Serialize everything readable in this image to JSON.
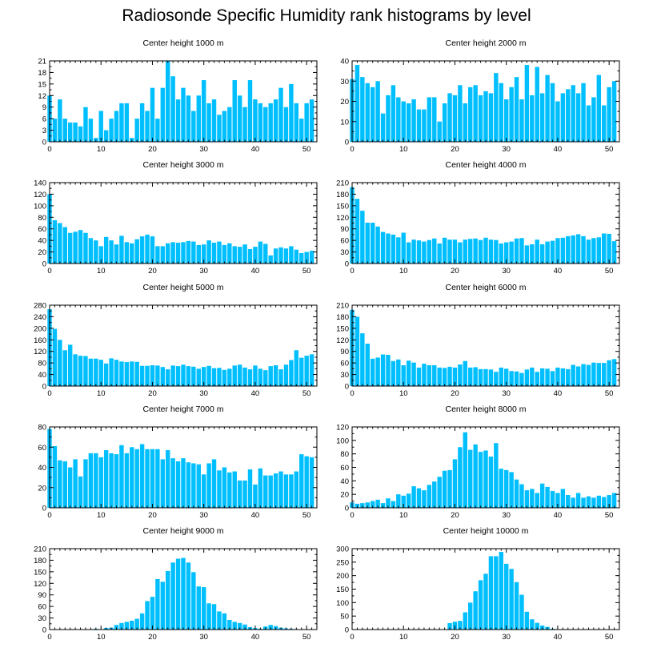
{
  "title": "Radiosonde Specific Humidity rank histograms by level",
  "colors": {
    "bar": "#00bfff",
    "bar_stroke": "#ffffff",
    "axis": "#000000"
  },
  "chart_data": [
    {
      "type": "bar",
      "title": "Center height 1000 m",
      "x_start": 0,
      "xlim": [
        0,
        52
      ],
      "xticks": [
        0,
        10,
        20,
        30,
        40,
        50
      ],
      "ylim": [
        0,
        21
      ],
      "yticks": [
        0,
        3,
        6,
        9,
        12,
        15,
        18,
        21
      ],
      "values": [
        12,
        6,
        11,
        6,
        5,
        5,
        4,
        9,
        6,
        1,
        8,
        3,
        6,
        8,
        10,
        10,
        1,
        6,
        10,
        8,
        14,
        6,
        14,
        21,
        17,
        11,
        14,
        12,
        8,
        12,
        16,
        10,
        11,
        7,
        8,
        9,
        16,
        12,
        9,
        16,
        11,
        10,
        9,
        10,
        11,
        14,
        9,
        15,
        10,
        6,
        10,
        11
      ]
    },
    {
      "type": "bar",
      "title": "Center height 2000 m",
      "x_start": 0,
      "xlim": [
        0,
        52
      ],
      "xticks": [
        0,
        10,
        20,
        30,
        40,
        50
      ],
      "ylim": [
        0,
        40
      ],
      "yticks": [
        0,
        10,
        20,
        30,
        40
      ],
      "values": [
        31,
        38,
        32,
        29,
        27,
        30,
        14,
        23,
        28,
        22,
        20,
        19,
        21,
        16,
        16,
        22,
        22,
        10,
        19,
        24,
        23,
        28,
        19,
        27,
        28,
        23,
        25,
        24,
        34,
        29,
        21,
        27,
        32,
        21,
        38,
        23,
        37,
        24,
        33,
        29,
        20,
        24,
        26,
        28,
        24,
        29,
        18,
        22,
        33,
        18,
        27,
        30
      ]
    },
    {
      "type": "bar",
      "title": "Center height 3000 m",
      "x_start": 0,
      "xlim": [
        0,
        52
      ],
      "xticks": [
        0,
        10,
        20,
        30,
        40,
        50
      ],
      "ylim": [
        0,
        140
      ],
      "yticks": [
        0,
        20,
        40,
        60,
        80,
        100,
        120,
        140
      ],
      "values": [
        120,
        75,
        70,
        63,
        53,
        55,
        58,
        53,
        44,
        40,
        30,
        46,
        40,
        33,
        48,
        37,
        35,
        42,
        47,
        50,
        47,
        30,
        30,
        35,
        37,
        36,
        37,
        39,
        38,
        32,
        33,
        40,
        36,
        38,
        32,
        35,
        30,
        29,
        33,
        25,
        29,
        38,
        34,
        14,
        26,
        28,
        26,
        30,
        24,
        18,
        20,
        22
      ]
    },
    {
      "type": "bar",
      "title": "Center height 4000 m",
      "x_start": 0,
      "xlim": [
        0,
        52
      ],
      "xticks": [
        0,
        10,
        20,
        30,
        40,
        50
      ],
      "ylim": [
        0,
        210
      ],
      "yticks": [
        0,
        30,
        60,
        90,
        120,
        150,
        180,
        210
      ],
      "values": [
        198,
        168,
        137,
        106,
        106,
        96,
        82,
        78,
        75,
        68,
        80,
        55,
        62,
        60,
        57,
        61,
        65,
        52,
        67,
        62,
        62,
        55,
        62,
        64,
        65,
        61,
        67,
        62,
        61,
        52,
        55,
        57,
        65,
        66,
        47,
        50,
        62,
        50,
        57,
        59,
        66,
        67,
        71,
        73,
        76,
        71,
        62,
        66,
        68,
        78,
        77,
        58
      ]
    },
    {
      "type": "bar",
      "title": "Center height 5000 m",
      "x_start": 0,
      "xlim": [
        0,
        52
      ],
      "xticks": [
        0,
        10,
        20,
        30,
        40,
        50
      ],
      "ylim": [
        0,
        280
      ],
      "yticks": [
        0,
        40,
        80,
        120,
        160,
        200,
        240,
        280
      ],
      "values": [
        266,
        198,
        160,
        124,
        143,
        110,
        105,
        104,
        95,
        95,
        91,
        78,
        96,
        91,
        85,
        83,
        85,
        84,
        70,
        70,
        72,
        71,
        66,
        58,
        71,
        69,
        74,
        69,
        67,
        60,
        66,
        70,
        62,
        63,
        56,
        60,
        71,
        74,
        64,
        58,
        71,
        60,
        55,
        69,
        72,
        58,
        74,
        90,
        124,
        98,
        105,
        110
      ]
    },
    {
      "type": "bar",
      "title": "Center height 6000 m",
      "x_start": 0,
      "xlim": [
        0,
        52
      ],
      "xticks": [
        0,
        10,
        20,
        30,
        40,
        50
      ],
      "ylim": [
        0,
        210
      ],
      "yticks": [
        0,
        30,
        60,
        90,
        120,
        150,
        180,
        210
      ],
      "values": [
        198,
        180,
        137,
        110,
        71,
        74,
        82,
        81,
        65,
        69,
        54,
        66,
        61,
        48,
        58,
        54,
        54,
        48,
        47,
        50,
        48,
        56,
        65,
        48,
        49,
        44,
        44,
        43,
        37,
        48,
        45,
        39,
        38,
        34,
        43,
        48,
        37,
        46,
        45,
        39,
        48,
        46,
        44,
        55,
        51,
        57,
        55,
        61,
        60,
        60,
        67,
        70
      ]
    },
    {
      "type": "bar",
      "title": "Center height 7000 m",
      "x_start": 0,
      "xlim": [
        0,
        52
      ],
      "xticks": [
        0,
        10,
        20,
        30,
        40,
        50
      ],
      "ylim": [
        0,
        80
      ],
      "yticks": [
        0,
        20,
        40,
        60,
        80
      ],
      "values": [
        78,
        61,
        47,
        46,
        40,
        48,
        31,
        48,
        54,
        54,
        50,
        57,
        54,
        53,
        62,
        54,
        60,
        58,
        63,
        58,
        58,
        58,
        48,
        57,
        49,
        46,
        49,
        45,
        44,
        43,
        33,
        44,
        48,
        37,
        40,
        35,
        36,
        27,
        27,
        38,
        23,
        39,
        32,
        32,
        34,
        36,
        33,
        33,
        36,
        53,
        51,
        50
      ]
    },
    {
      "type": "bar",
      "title": "Center height 8000 m",
      "x_start": 0,
      "xlim": [
        0,
        52
      ],
      "xticks": [
        0,
        10,
        20,
        30,
        40,
        50
      ],
      "ylim": [
        0,
        120
      ],
      "yticks": [
        0,
        20,
        40,
        60,
        80,
        100,
        120
      ],
      "values": [
        8,
        6,
        7,
        8,
        10,
        12,
        7,
        14,
        10,
        20,
        18,
        21,
        32,
        29,
        26,
        34,
        39,
        46,
        55,
        56,
        72,
        90,
        112,
        86,
        94,
        83,
        85,
        76,
        96,
        58,
        56,
        53,
        42,
        35,
        26,
        28,
        22,
        36,
        31,
        25,
        22,
        28,
        19,
        15,
        22,
        15,
        17,
        15,
        18,
        16,
        19,
        22
      ]
    },
    {
      "type": "bar",
      "title": "Center height 9000 m",
      "x_start": 0,
      "xlim": [
        0,
        52
      ],
      "xticks": [
        0,
        10,
        20,
        30,
        40,
        50
      ],
      "ylim": [
        0,
        210
      ],
      "yticks": [
        0,
        30,
        60,
        90,
        120,
        150,
        180,
        210
      ],
      "values": [
        0,
        0,
        0,
        0,
        0,
        0,
        0,
        0,
        0,
        2,
        0,
        4,
        5,
        12,
        17,
        20,
        23,
        28,
        42,
        74,
        85,
        131,
        124,
        152,
        174,
        184,
        186,
        174,
        149,
        112,
        110,
        68,
        66,
        47,
        42,
        25,
        20,
        17,
        13,
        6,
        4,
        2,
        8,
        12,
        9,
        5,
        3,
        2,
        1,
        0,
        0,
        0
      ]
    },
    {
      "type": "bar",
      "title": "Center height 10000 m",
      "x_start": 0,
      "xlim": [
        0,
        52
      ],
      "xticks": [
        0,
        10,
        20,
        30,
        40,
        50
      ],
      "ylim": [
        0,
        300
      ],
      "yticks": [
        0,
        50,
        100,
        150,
        200,
        250,
        300
      ],
      "values": [
        0,
        0,
        0,
        0,
        0,
        0,
        0,
        0,
        0,
        0,
        0,
        0,
        0,
        0,
        0,
        0,
        0,
        0,
        1,
        24,
        29,
        32,
        64,
        100,
        142,
        183,
        207,
        272,
        272,
        288,
        244,
        225,
        176,
        129,
        66,
        38,
        25,
        15,
        10,
        3,
        0,
        0,
        0,
        0,
        0,
        0,
        0,
        0,
        0,
        0,
        0,
        0
      ]
    }
  ]
}
